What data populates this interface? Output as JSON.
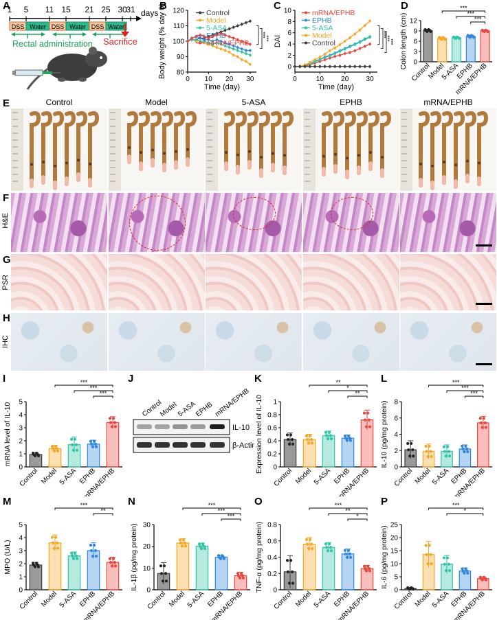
{
  "panel_letters": [
    "A",
    "B",
    "C",
    "D",
    "E",
    "F",
    "G",
    "H",
    "I",
    "J",
    "K",
    "L",
    "M",
    "N",
    "O",
    "P"
  ],
  "groups": [
    "Control",
    "Model",
    "5-ASA",
    "EPHB",
    "mRNA/EPHB"
  ],
  "group_colors": [
    "#3a3a3a",
    "#f5a623",
    "#2ec4a5",
    "#2e86de",
    "#e8463c"
  ],
  "timeline": {
    "ticks": [
      "1",
      "5",
      "11",
      "15",
      "21",
      "25",
      "30",
      "31"
    ],
    "unit": "days",
    "segments": [
      "DSS",
      "Water",
      "DSS",
      "Water",
      "DSS",
      "Water"
    ],
    "rectal_label": "Rectal administration",
    "sacrifice_label": "Sacrifice"
  },
  "photo_row_labels": {
    "he": "H&E",
    "psr": "PSR",
    "ihc": "IHC"
  },
  "western": {
    "bands": [
      "IL-10",
      "β-Actin"
    ]
  },
  "chart_data": [
    {
      "id": "B",
      "type": "line",
      "xlabel": "Time (day)",
      "ylabel": "Body weight (% day 0)",
      "xlim": [
        0,
        33
      ],
      "ylim": [
        80,
        120
      ],
      "xticks": [
        0,
        10,
        20,
        30
      ],
      "yticks": [
        80,
        90,
        100,
        110,
        120
      ],
      "x": [
        0,
        2,
        4,
        6,
        8,
        10,
        12,
        14,
        16,
        18,
        20,
        22,
        24,
        26,
        28,
        30
      ],
      "series": [
        {
          "name": "Control",
          "values": [
            100,
            101,
            101,
            102,
            102,
            103,
            104,
            105,
            106,
            107,
            108,
            109,
            110,
            111,
            112,
            113
          ]
        },
        {
          "name": "Model",
          "values": [
            100,
            101,
            100,
            100,
            99,
            98,
            97,
            96,
            95,
            94,
            93,
            91,
            90,
            88,
            87,
            85
          ]
        },
        {
          "name": "5-ASA",
          "values": [
            100,
            101,
            101,
            100,
            100,
            99,
            98,
            99,
            98,
            97,
            96,
            95,
            94,
            93,
            92,
            91
          ]
        },
        {
          "name": "EPHB",
          "values": [
            100,
            102,
            103,
            102,
            101,
            101,
            100,
            101,
            100,
            99,
            98,
            97,
            96,
            95,
            94,
            94
          ]
        },
        {
          "name": "mRNA/EPHB",
          "values": [
            100,
            102,
            103,
            104,
            103,
            102,
            103,
            104,
            105,
            104,
            103,
            102,
            101,
            100,
            99,
            98
          ]
        }
      ],
      "annotations": [
        "***",
        "***"
      ]
    },
    {
      "id": "C",
      "type": "line",
      "xlabel": "Time (day)",
      "ylabel": "DAI",
      "xlim": [
        0,
        33
      ],
      "ylim": [
        -1,
        10
      ],
      "xticks": [
        0,
        10,
        20,
        30
      ],
      "yticks": [
        0,
        2,
        4,
        6,
        8,
        10
      ],
      "x": [
        0,
        2,
        4,
        6,
        8,
        10,
        12,
        14,
        16,
        18,
        20,
        22,
        24,
        26,
        28,
        30
      ],
      "series": [
        {
          "name": "mRNA/EPHB",
          "values": [
            0,
            0,
            0.1,
            0.3,
            0.6,
            0.9,
            1.2,
            1.5,
            1.8,
            2.0,
            2.3,
            2.5,
            2.8,
            3.2,
            3.6,
            4.0
          ]
        },
        {
          "name": "EPHB",
          "values": [
            0,
            0,
            0.2,
            0.5,
            0.9,
            1.3,
            1.7,
            2.0,
            2.4,
            2.8,
            3.2,
            3.6,
            4.0,
            4.4,
            4.9,
            5.3
          ]
        },
        {
          "name": "5-ASA",
          "values": [
            0,
            0,
            0.2,
            0.5,
            0.8,
            1.2,
            1.6,
            1.9,
            2.3,
            2.7,
            3.1,
            3.5,
            3.9,
            4.3,
            4.8,
            5.2
          ]
        },
        {
          "name": "Model",
          "values": [
            0,
            0,
            0.3,
            0.7,
            1.2,
            1.7,
            2.2,
            2.8,
            3.3,
            3.9,
            4.5,
            5.1,
            5.8,
            6.5,
            7.3,
            8.1
          ]
        },
        {
          "name": "Control",
          "values": [
            0,
            0,
            0,
            0,
            0,
            0,
            0,
            0,
            0,
            0,
            0,
            0,
            0,
            0,
            0,
            0
          ]
        }
      ],
      "annotations": [
        "***",
        "***",
        "***"
      ]
    },
    {
      "id": "D",
      "type": "bar",
      "ylabel": "Colon length (cm)",
      "ylim": [
        0,
        12
      ],
      "yticks": [
        0,
        3,
        6,
        9,
        12
      ],
      "values": [
        9.1,
        6.8,
        7.0,
        7.4,
        9.0
      ],
      "errors": [
        0.4,
        0.4,
        0.3,
        0.4,
        0.3
      ],
      "sig": [
        {
          "from": 1,
          "to": 4,
          "label": "***"
        },
        {
          "from": 2,
          "to": 4,
          "label": "***"
        },
        {
          "from": 3,
          "to": 4,
          "label": "***"
        }
      ]
    },
    {
      "id": "I",
      "type": "bar",
      "ylabel": "mRNA level of IL-10",
      "ylim": [
        0,
        5
      ],
      "yticks": [
        0,
        1,
        2,
        3,
        4,
        5
      ],
      "values": [
        0.95,
        1.4,
        1.7,
        1.75,
        3.4
      ],
      "errors": [
        0.15,
        0.25,
        0.6,
        0.3,
        0.45
      ],
      "sig": [
        {
          "from": 1,
          "to": 4,
          "label": "***"
        },
        {
          "from": 2,
          "to": 4,
          "label": "***"
        },
        {
          "from": 3,
          "to": 4,
          "label": "***"
        }
      ]
    },
    {
      "id": "K",
      "type": "bar",
      "ylabel": "Expression level of IL-10",
      "ylim": [
        0,
        1.0
      ],
      "yticks": [
        0,
        0.2,
        0.4,
        0.6,
        0.8,
        1.0
      ],
      "values": [
        0.42,
        0.42,
        0.48,
        0.44,
        0.72
      ],
      "errors": [
        0.1,
        0.08,
        0.07,
        0.05,
        0.15
      ],
      "sig": [
        {
          "from": 1,
          "to": 4,
          "label": "**"
        },
        {
          "from": 2,
          "to": 4,
          "label": "*"
        },
        {
          "from": 3,
          "to": 4,
          "label": "**"
        }
      ]
    },
    {
      "id": "L",
      "type": "bar",
      "ylabel": "IL-10 (pg/mg protein)",
      "ylim": [
        0,
        8
      ],
      "yticks": [
        0,
        2,
        4,
        6,
        8
      ],
      "values": [
        2.1,
        1.9,
        1.9,
        2.2,
        5.4
      ],
      "errors": [
        1.1,
        0.9,
        0.8,
        0.5,
        0.8
      ],
      "sig": [
        {
          "from": 1,
          "to": 4,
          "label": "***"
        },
        {
          "from": 2,
          "to": 4,
          "label": "***"
        },
        {
          "from": 3,
          "to": 4,
          "label": "***"
        }
      ]
    },
    {
      "id": "M",
      "type": "bar",
      "ylabel": "MPO (U/L)",
      "ylim": [
        0,
        5
      ],
      "yticks": [
        0,
        1,
        2,
        3,
        4,
        5
      ],
      "values": [
        1.9,
        3.6,
        2.6,
        3.0,
        2.1
      ],
      "errors": [
        0.2,
        0.6,
        0.3,
        0.6,
        0.4
      ],
      "sig": [
        {
          "from": 1,
          "to": 4,
          "label": "***"
        },
        {
          "from": 3,
          "to": 4,
          "label": "**"
        }
      ]
    },
    {
      "id": "N",
      "type": "bar",
      "ylabel": "IL-1β (pg/mg protein)",
      "ylim": [
        0,
        30
      ],
      "yticks": [
        0,
        10,
        20,
        30
      ],
      "values": [
        7.5,
        21.5,
        20.0,
        15.0,
        6.5
      ],
      "errors": [
        5.0,
        2.0,
        1.5,
        1.0,
        1.5
      ],
      "sig": [
        {
          "from": 1,
          "to": 4,
          "label": "***"
        },
        {
          "from": 2,
          "to": 4,
          "label": "***"
        },
        {
          "from": 3,
          "to": 4,
          "label": "***"
        }
      ]
    },
    {
      "id": "O",
      "type": "bar",
      "ylabel": "TNF-α (pg/mg protein)",
      "ylim": [
        0,
        0.8
      ],
      "yticks": [
        0,
        0.2,
        0.4,
        0.6,
        0.8
      ],
      "values": [
        0.22,
        0.56,
        0.52,
        0.44,
        0.26
      ],
      "errors": [
        0.2,
        0.08,
        0.06,
        0.06,
        0.04
      ],
      "sig": [
        {
          "from": 1,
          "to": 4,
          "label": "***"
        },
        {
          "from": 2,
          "to": 4,
          "label": "**"
        },
        {
          "from": 3,
          "to": 4,
          "label": "*"
        }
      ]
    },
    {
      "id": "P",
      "type": "bar",
      "ylabel": "IL-6 (pg/mg protein)",
      "ylim": [
        0,
        25
      ],
      "yticks": [
        0,
        5,
        10,
        15,
        20,
        25
      ],
      "values": [
        0.5,
        13.5,
        9.8,
        7.2,
        4.3
      ],
      "errors": [
        0.4,
        5.0,
        3.5,
        1.2,
        0.7
      ],
      "sig": [
        {
          "from": 1,
          "to": 4,
          "label": "***"
        },
        {
          "from": 2,
          "to": 4,
          "label": "*"
        }
      ]
    }
  ]
}
